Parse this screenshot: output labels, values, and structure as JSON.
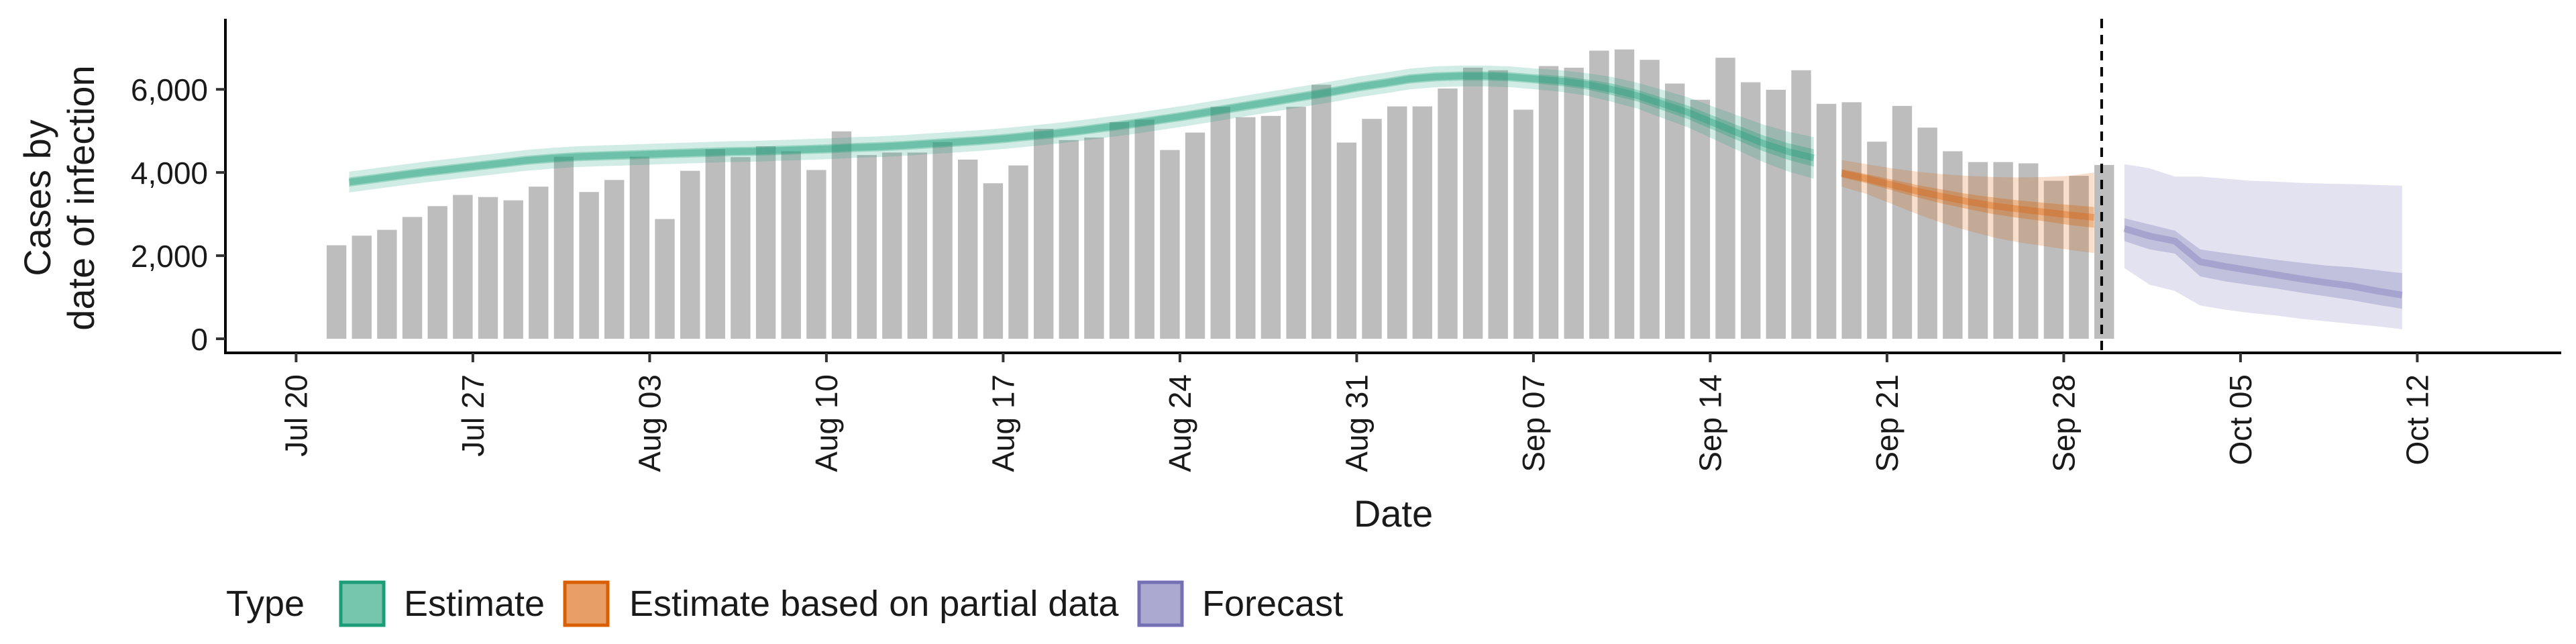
{
  "chart_data": {
    "type": "bar",
    "title": "",
    "xlabel": "Date",
    "ylabel_lines": [
      "Cases by",
      "date of infection"
    ],
    "ylim": [
      0,
      7600
    ],
    "y_ticks": [
      0,
      2000,
      4000,
      6000
    ],
    "y_tick_labels": [
      "0",
      "2,000",
      "4,000",
      "6,000"
    ],
    "x_tick_days": [
      0,
      7,
      14,
      21,
      28,
      35,
      42,
      49,
      56,
      63,
      70,
      77,
      84
    ],
    "x_tick_labels": [
      "Jul 20",
      "Jul 27",
      "Aug 03",
      "Aug 10",
      "Aug 17",
      "Aug 24",
      "Aug 31",
      "Sep 07",
      "Sep 14",
      "Sep 21",
      "Sep 28",
      "Oct 05",
      "Oct 12"
    ],
    "x_day_range": [
      -2.8,
      89.7
    ],
    "x_origin": "Jul 20",
    "forecast_date_day": 71.5,
    "bars": {
      "start_day": 1.6,
      "values": [
        2250,
        2480,
        2620,
        2930,
        3190,
        3460,
        3410,
        3330,
        3660,
        4380,
        3530,
        3820,
        4380,
        2880,
        4040,
        4560,
        4370,
        4630,
        4510,
        4060,
        4990,
        4420,
        4480,
        4480,
        4730,
        4310,
        3740,
        4170,
        5050,
        4780,
        4840,
        5210,
        5270,
        4540,
        4960,
        5580,
        5330,
        5360,
        5580,
        6110,
        4720,
        5290,
        5590,
        5590,
        6020,
        6520,
        6460,
        5510,
        6560,
        6520,
        6930,
        6960,
        6710,
        6140,
        5750,
        6760,
        6170,
        5990,
        6460,
        5650,
        5690,
        4740,
        5600,
        5080,
        4510,
        4250,
        4250,
        4220,
        3800,
        3920,
        4180
      ]
    },
    "series": [
      {
        "name": "Estimate",
        "color": "#1b9e77",
        "start_day": 2.1,
        "median": [
          3770,
          3850,
          3930,
          4010,
          4080,
          4150,
          4220,
          4290,
          4340,
          4380,
          4400,
          4420,
          4440,
          4460,
          4480,
          4500,
          4510,
          4530,
          4550,
          4570,
          4600,
          4620,
          4650,
          4690,
          4730,
          4770,
          4820,
          4880,
          4940,
          5010,
          5090,
          5170,
          5260,
          5350,
          5450,
          5550,
          5650,
          5750,
          5850,
          5950,
          6060,
          6150,
          6250,
          6300,
          6320,
          6320,
          6300,
          6250,
          6200,
          6120,
          6000,
          5850,
          5650,
          5450,
          5200,
          4950,
          4700,
          4500,
          4350
        ],
        "inner_upper": [
          3880,
          3960,
          4040,
          4120,
          4190,
          4260,
          4330,
          4400,
          4450,
          4490,
          4510,
          4530,
          4550,
          4570,
          4590,
          4610,
          4620,
          4640,
          4660,
          4680,
          4710,
          4730,
          4760,
          4800,
          4840,
          4880,
          4930,
          4990,
          5050,
          5120,
          5200,
          5280,
          5370,
          5460,
          5560,
          5660,
          5760,
          5860,
          5960,
          6060,
          6170,
          6260,
          6360,
          6410,
          6430,
          6430,
          6410,
          6360,
          6320,
          6240,
          6140,
          5990,
          5800,
          5610,
          5370,
          5130,
          4890,
          4700,
          4560
        ],
        "inner_lower": [
          3660,
          3740,
          3820,
          3900,
          3970,
          4040,
          4110,
          4180,
          4230,
          4270,
          4290,
          4310,
          4330,
          4350,
          4370,
          4390,
          4400,
          4420,
          4440,
          4460,
          4490,
          4510,
          4540,
          4580,
          4620,
          4660,
          4710,
          4770,
          4830,
          4900,
          4980,
          5060,
          5150,
          5240,
          5340,
          5440,
          5540,
          5640,
          5740,
          5840,
          5950,
          6040,
          6140,
          6190,
          6210,
          6210,
          6190,
          6140,
          6080,
          6000,
          5860,
          5710,
          5500,
          5290,
          5030,
          4770,
          4510,
          4300,
          4140
        ],
        "outer_upper": [
          4020,
          4100,
          4180,
          4260,
          4330,
          4400,
          4470,
          4540,
          4590,
          4630,
          4650,
          4670,
          4690,
          4710,
          4730,
          4750,
          4760,
          4780,
          4800,
          4820,
          4850,
          4870,
          4900,
          4940,
          4980,
          5020,
          5070,
          5130,
          5190,
          5260,
          5340,
          5420,
          5510,
          5600,
          5700,
          5800,
          5900,
          6000,
          6100,
          6200,
          6310,
          6400,
          6500,
          6550,
          6570,
          6570,
          6550,
          6500,
          6460,
          6390,
          6300,
          6160,
          5990,
          5810,
          5590,
          5370,
          5150,
          4980,
          4850
        ],
        "outer_lower": [
          3520,
          3600,
          3680,
          3760,
          3830,
          3900,
          3970,
          4040,
          4090,
          4130,
          4150,
          4170,
          4190,
          4210,
          4230,
          4250,
          4260,
          4280,
          4300,
          4320,
          4350,
          4370,
          4400,
          4440,
          4480,
          4520,
          4570,
          4630,
          4690,
          4760,
          4840,
          4920,
          5010,
          5100,
          5200,
          5300,
          5400,
          5500,
          5600,
          5700,
          5810,
          5900,
          6000,
          6050,
          6070,
          6070,
          6050,
          6000,
          5940,
          5850,
          5700,
          5540,
          5310,
          5090,
          4810,
          4530,
          4250,
          4020,
          3850
        ]
      },
      {
        "name": "Estimate based on partial data",
        "color": "#d95f02",
        "start_day": 61.2,
        "median": [
          3980,
          3850,
          3700,
          3550,
          3420,
          3300,
          3200,
          3120,
          3050,
          2980,
          2920
        ],
        "inner_upper": [
          4080,
          3960,
          3830,
          3700,
          3590,
          3480,
          3400,
          3330,
          3270,
          3220,
          3170
        ],
        "inner_lower": [
          3880,
          3740,
          3570,
          3400,
          3250,
          3120,
          3000,
          2910,
          2830,
          2740,
          2670
        ],
        "outer_upper": [
          4300,
          4200,
          4100,
          4020,
          3960,
          3920,
          3890,
          3880,
          3890,
          3920,
          4000
        ],
        "outer_lower": [
          3660,
          3480,
          3240,
          3000,
          2780,
          2600,
          2440,
          2320,
          2230,
          2140,
          2060
        ]
      },
      {
        "name": "Forecast",
        "color": "#7570b3",
        "start_day": 72.4,
        "median": [
          2650,
          2470,
          2350,
          1850,
          1740,
          1640,
          1540,
          1440,
          1350,
          1270,
          1150,
          1050
        ],
        "inner_upper": [
          2900,
          2750,
          2600,
          2150,
          2060,
          1980,
          1900,
          1830,
          1760,
          1720,
          1650,
          1580
        ],
        "inner_lower": [
          2350,
          2150,
          2050,
          1500,
          1380,
          1290,
          1210,
          1110,
          1020,
          930,
          820,
          720
        ],
        "outer_upper": [
          4200,
          4100,
          3900,
          3900,
          3850,
          3800,
          3780,
          3750,
          3730,
          3720,
          3700,
          3680
        ],
        "outer_lower": [
          1700,
          1300,
          1150,
          800,
          700,
          620,
          560,
          480,
          420,
          360,
          300,
          230
        ]
      }
    ],
    "legend": {
      "title": "Type",
      "position": "bottom",
      "entries": [
        "Estimate",
        "Estimate based on partial data",
        "Forecast"
      ]
    }
  }
}
